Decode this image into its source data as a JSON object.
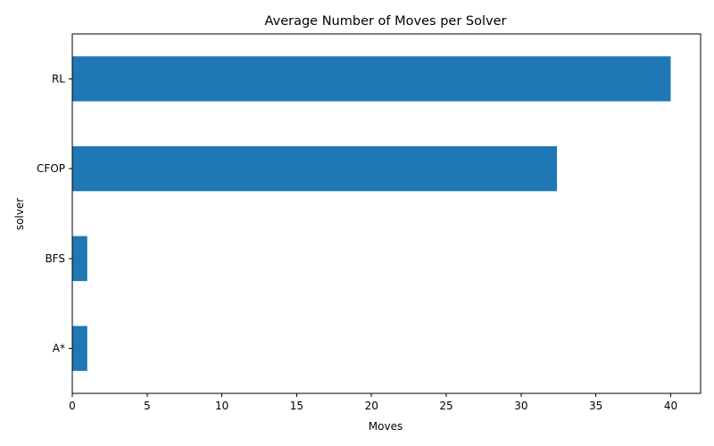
{
  "chart_data": {
    "type": "bar",
    "orientation": "horizontal",
    "title": "Average Number of Moves per Solver",
    "xlabel": "Moves",
    "ylabel": "solver",
    "categories": [
      "A*",
      "BFS",
      "CFOP",
      "RL"
    ],
    "values": [
      1,
      1,
      32.4,
      40
    ],
    "xlim": [
      0,
      42
    ],
    "xticks": [
      0,
      5,
      10,
      15,
      20,
      25,
      30,
      35,
      40
    ],
    "bar_color": "#1f77b4",
    "grid": false,
    "legend": "none"
  }
}
